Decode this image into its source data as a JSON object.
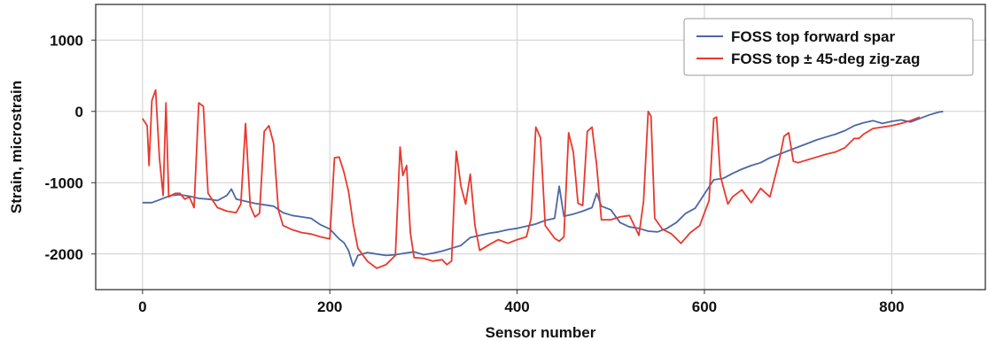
{
  "chart_data": {
    "type": "line",
    "title": "",
    "xlabel": "Sensor number",
    "ylabel": "Strain, microstrain",
    "xlim": [
      -50,
      900
    ],
    "ylim": [
      -2500,
      1500
    ],
    "xticks": [
      0,
      200,
      400,
      600,
      800
    ],
    "yticks": [
      -2000,
      -1000,
      0,
      1000
    ],
    "xtick_labels": [
      "0",
      "200",
      "400",
      "600",
      "800"
    ],
    "ytick_labels": [
      "-2000",
      "-1000",
      "0",
      "1000"
    ],
    "grid": true,
    "legend_position": "top-right",
    "series": [
      {
        "name": "FOSS top forward spar",
        "color": "#4a68a6",
        "points": [
          [
            0,
            -1280
          ],
          [
            10,
            -1280
          ],
          [
            20,
            -1230
          ],
          [
            30,
            -1180
          ],
          [
            40,
            -1170
          ],
          [
            50,
            -1190
          ],
          [
            60,
            -1220
          ],
          [
            70,
            -1230
          ],
          [
            80,
            -1250
          ],
          [
            90,
            -1180
          ],
          [
            95,
            -1090
          ],
          [
            100,
            -1230
          ],
          [
            110,
            -1260
          ],
          [
            120,
            -1290
          ],
          [
            130,
            -1310
          ],
          [
            140,
            -1330
          ],
          [
            150,
            -1420
          ],
          [
            160,
            -1460
          ],
          [
            170,
            -1480
          ],
          [
            180,
            -1500
          ],
          [
            190,
            -1590
          ],
          [
            200,
            -1650
          ],
          [
            210,
            -1790
          ],
          [
            215,
            -1840
          ],
          [
            220,
            -1950
          ],
          [
            225,
            -2170
          ],
          [
            230,
            -2020
          ],
          [
            240,
            -1980
          ],
          [
            250,
            -2000
          ],
          [
            260,
            -2020
          ],
          [
            270,
            -2010
          ],
          [
            280,
            -1990
          ],
          [
            290,
            -1970
          ],
          [
            300,
            -2010
          ],
          [
            310,
            -1990
          ],
          [
            320,
            -1960
          ],
          [
            330,
            -1920
          ],
          [
            340,
            -1880
          ],
          [
            350,
            -1770
          ],
          [
            360,
            -1740
          ],
          [
            370,
            -1710
          ],
          [
            380,
            -1690
          ],
          [
            390,
            -1660
          ],
          [
            400,
            -1640
          ],
          [
            410,
            -1610
          ],
          [
            420,
            -1580
          ],
          [
            430,
            -1530
          ],
          [
            440,
            -1500
          ],
          [
            445,
            -1050
          ],
          [
            450,
            -1470
          ],
          [
            460,
            -1440
          ],
          [
            470,
            -1400
          ],
          [
            480,
            -1350
          ],
          [
            485,
            -1150
          ],
          [
            490,
            -1330
          ],
          [
            500,
            -1380
          ],
          [
            510,
            -1560
          ],
          [
            520,
            -1620
          ],
          [
            530,
            -1640
          ],
          [
            540,
            -1680
          ],
          [
            550,
            -1690
          ],
          [
            560,
            -1640
          ],
          [
            570,
            -1560
          ],
          [
            580,
            -1430
          ],
          [
            590,
            -1360
          ],
          [
            600,
            -1160
          ],
          [
            610,
            -960
          ],
          [
            620,
            -940
          ],
          [
            630,
            -870
          ],
          [
            640,
            -810
          ],
          [
            650,
            -760
          ],
          [
            660,
            -720
          ],
          [
            670,
            -650
          ],
          [
            680,
            -600
          ],
          [
            690,
            -550
          ],
          [
            700,
            -500
          ],
          [
            710,
            -450
          ],
          [
            720,
            -400
          ],
          [
            730,
            -360
          ],
          [
            740,
            -320
          ],
          [
            750,
            -270
          ],
          [
            760,
            -200
          ],
          [
            770,
            -160
          ],
          [
            780,
            -130
          ],
          [
            790,
            -170
          ],
          [
            800,
            -140
          ],
          [
            810,
            -120
          ],
          [
            820,
            -150
          ],
          [
            830,
            -100
          ],
          [
            840,
            -50
          ],
          [
            850,
            -10
          ],
          [
            855,
            0
          ]
        ]
      },
      {
        "name": "FOSS top ± 45-deg zig-zag",
        "color": "#e8392e",
        "points": [
          [
            0,
            -100
          ],
          [
            5,
            -200
          ],
          [
            7,
            -760
          ],
          [
            10,
            150
          ],
          [
            14,
            300
          ],
          [
            18,
            -650
          ],
          [
            22,
            -1180
          ],
          [
            25,
            120
          ],
          [
            28,
            -1200
          ],
          [
            35,
            -1150
          ],
          [
            40,
            -1150
          ],
          [
            45,
            -1230
          ],
          [
            50,
            -1200
          ],
          [
            55,
            -1350
          ],
          [
            60,
            120
          ],
          [
            65,
            70
          ],
          [
            70,
            -1150
          ],
          [
            80,
            -1350
          ],
          [
            90,
            -1400
          ],
          [
            100,
            -1420
          ],
          [
            105,
            -1300
          ],
          [
            110,
            -170
          ],
          [
            115,
            -1330
          ],
          [
            120,
            -1480
          ],
          [
            125,
            -1430
          ],
          [
            130,
            -280
          ],
          [
            135,
            -200
          ],
          [
            140,
            -450
          ],
          [
            145,
            -1380
          ],
          [
            150,
            -1600
          ],
          [
            160,
            -1660
          ],
          [
            170,
            -1700
          ],
          [
            180,
            -1720
          ],
          [
            190,
            -1760
          ],
          [
            200,
            -1790
          ],
          [
            205,
            -650
          ],
          [
            210,
            -640
          ],
          [
            215,
            -850
          ],
          [
            220,
            -1120
          ],
          [
            225,
            -1580
          ],
          [
            230,
            -1920
          ],
          [
            240,
            -2100
          ],
          [
            250,
            -2200
          ],
          [
            260,
            -2150
          ],
          [
            270,
            -2020
          ],
          [
            275,
            -500
          ],
          [
            278,
            -900
          ],
          [
            282,
            -760
          ],
          [
            286,
            -1700
          ],
          [
            290,
            -2050
          ],
          [
            300,
            -2060
          ],
          [
            310,
            -2100
          ],
          [
            320,
            -2080
          ],
          [
            325,
            -2150
          ],
          [
            330,
            -2100
          ],
          [
            335,
            -560
          ],
          [
            340,
            -1050
          ],
          [
            345,
            -1300
          ],
          [
            350,
            -880
          ],
          [
            355,
            -1600
          ],
          [
            360,
            -1950
          ],
          [
            370,
            -1870
          ],
          [
            380,
            -1800
          ],
          [
            390,
            -1850
          ],
          [
            400,
            -1800
          ],
          [
            410,
            -1760
          ],
          [
            415,
            -1500
          ],
          [
            420,
            -220
          ],
          [
            425,
            -370
          ],
          [
            430,
            -1600
          ],
          [
            440,
            -1780
          ],
          [
            445,
            -1820
          ],
          [
            450,
            -1760
          ],
          [
            455,
            -300
          ],
          [
            460,
            -570
          ],
          [
            465,
            -1290
          ],
          [
            470,
            -1320
          ],
          [
            475,
            -280
          ],
          [
            480,
            -220
          ],
          [
            485,
            -760
          ],
          [
            490,
            -1520
          ],
          [
            500,
            -1520
          ],
          [
            510,
            -1480
          ],
          [
            520,
            -1460
          ],
          [
            530,
            -1740
          ],
          [
            535,
            -1260
          ],
          [
            540,
            0
          ],
          [
            543,
            -70
          ],
          [
            547,
            -1500
          ],
          [
            555,
            -1650
          ],
          [
            565,
            -1720
          ],
          [
            575,
            -1850
          ],
          [
            585,
            -1700
          ],
          [
            595,
            -1600
          ],
          [
            605,
            -1250
          ],
          [
            610,
            -100
          ],
          [
            613,
            -80
          ],
          [
            617,
            -900
          ],
          [
            625,
            -1300
          ],
          [
            630,
            -1200
          ],
          [
            640,
            -1100
          ],
          [
            650,
            -1280
          ],
          [
            660,
            -1080
          ],
          [
            670,
            -1200
          ],
          [
            680,
            -680
          ],
          [
            685,
            -350
          ],
          [
            690,
            -300
          ],
          [
            695,
            -700
          ],
          [
            700,
            -720
          ],
          [
            710,
            -680
          ],
          [
            720,
            -640
          ],
          [
            730,
            -600
          ],
          [
            740,
            -570
          ],
          [
            750,
            -510
          ],
          [
            760,
            -380
          ],
          [
            765,
            -380
          ],
          [
            770,
            -320
          ],
          [
            780,
            -240
          ],
          [
            790,
            -220
          ],
          [
            800,
            -200
          ],
          [
            810,
            -170
          ],
          [
            820,
            -130
          ],
          [
            830,
            -80
          ]
        ]
      }
    ]
  }
}
